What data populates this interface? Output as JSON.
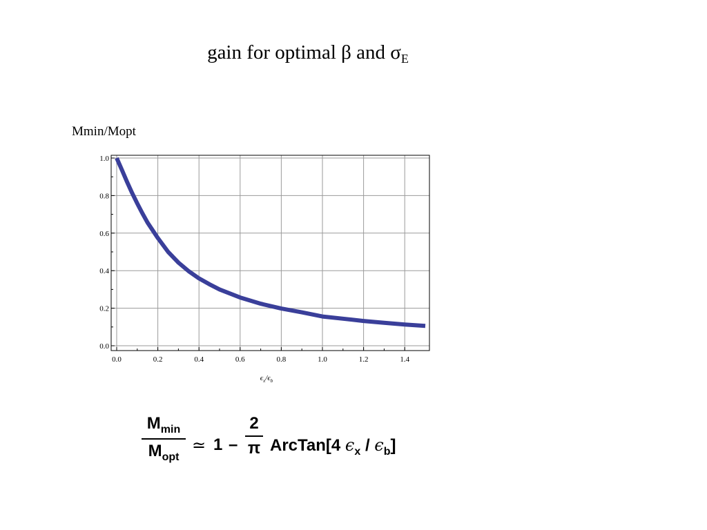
{
  "title": {
    "text": "gain for optimal β and  σ",
    "subscript": "E"
  },
  "chart_data": {
    "type": "line",
    "ylabel": "Mmin/Mopt",
    "xlabel_parts": [
      "ϵ",
      "x",
      "/ϵ",
      "b"
    ],
    "xlim": [
      0,
      1.5
    ],
    "ylim": [
      0,
      1.0
    ],
    "grid": true,
    "x_ticks": [
      "0.0",
      "0.2",
      "0.4",
      "0.6",
      "0.8",
      "1.0",
      "1.2",
      "1.4"
    ],
    "y_ticks": [
      "0.0",
      "0.2",
      "0.4",
      "0.6",
      "0.8",
      "1.0"
    ],
    "series": [
      {
        "color": "#3a3f9a",
        "x": [
          0,
          0.025,
          0.05,
          0.075,
          0.1,
          0.125,
          0.15,
          0.2,
          0.25,
          0.3,
          0.35,
          0.4,
          0.45,
          0.5,
          0.6,
          0.7,
          0.8,
          0.9,
          1.0,
          1.1,
          1.2,
          1.3,
          1.4,
          1.5
        ],
        "y": [
          1.0,
          0.937,
          0.874,
          0.814,
          0.758,
          0.705,
          0.656,
          0.574,
          0.5,
          0.443,
          0.397,
          0.359,
          0.328,
          0.3,
          0.257,
          0.224,
          0.198,
          0.178,
          0.156,
          0.144,
          0.132,
          0.122,
          0.113,
          0.106
        ]
      }
    ]
  },
  "formula": {
    "lhs_num": "M",
    "lhs_num_sub": "min",
    "lhs_den": "M",
    "lhs_den_sub": "opt",
    "approx": "≃",
    "one": "1",
    "minus": "–",
    "rhs_num": "2",
    "rhs_den": "π",
    "arctan_pre": "ArcTan[4 ",
    "eps": "ϵ",
    "x_sub": "x",
    "slash": " / ",
    "b_sub": "b",
    "close": "]"
  }
}
